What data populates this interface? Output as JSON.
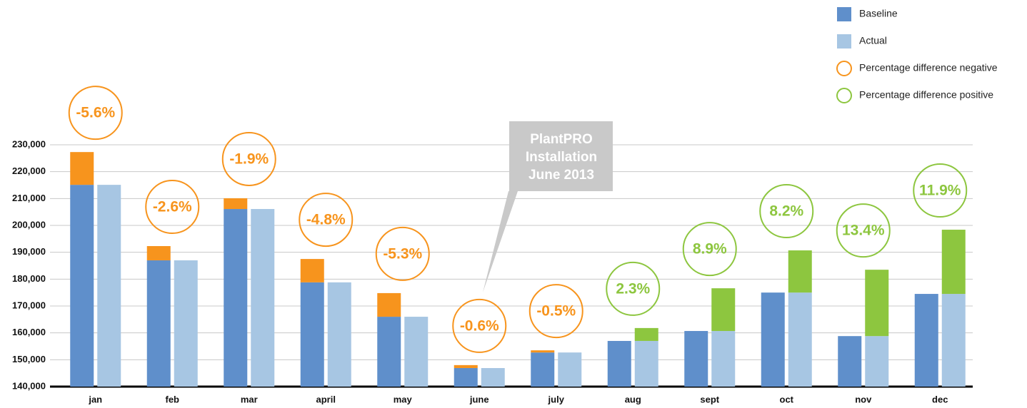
{
  "chart_data": {
    "type": "bar",
    "categories": [
      "jan",
      "feb",
      "mar",
      "april",
      "may",
      "june",
      "july",
      "aug",
      "sept",
      "oct",
      "nov",
      "dec"
    ],
    "series": [
      {
        "name": "Baseline",
        "color": "#5f8fcb",
        "values": [
          215100,
          187000,
          206100,
          178800,
          166000,
          146900,
          152700,
          161800,
          176600,
          190700,
          183500,
          198400
        ]
      },
      {
        "name": "Actual",
        "color": "#a7c6e3",
        "values": [
          227300,
          192300,
          210100,
          187500,
          174800,
          148000,
          153500,
          157000,
          160700,
          175000,
          158800,
          174500
        ]
      }
    ],
    "percent_difference": {
      "values": [
        -5.6,
        -2.6,
        -1.9,
        -4.8,
        -5.3,
        -0.6,
        -0.5,
        2.3,
        8.9,
        8.2,
        13.4,
        11.9
      ],
      "value_labels": [
        "-5.6%",
        "-2.6%",
        "-1.9%",
        "-4.8%",
        "-5.3%",
        "-0.6%",
        "-0.5%",
        "2.3%",
        "8.9%",
        "8.2%",
        "13.4%",
        "11.9%"
      ]
    },
    "percent_legend": [
      {
        "name": "Percentage difference negative",
        "color": "#f7941d"
      },
      {
        "name": "Percentage difference positive",
        "color": "#8dc63f"
      }
    ],
    "annotation": [
      "PlantPRO",
      "Installation",
      "June 2013"
    ],
    "ylim": [
      140000,
      230000
    ],
    "yticks": [
      {
        "value": 140000,
        "label": "140,000"
      },
      {
        "value": 150000,
        "label": "150,000"
      },
      {
        "value": 160000,
        "label": "160,000"
      },
      {
        "value": 170000,
        "label": "170,000"
      },
      {
        "value": 180000,
        "label": "180,000"
      },
      {
        "value": 190000,
        "label": "190,000"
      },
      {
        "value": 200000,
        "label": "200,000"
      },
      {
        "value": 210000,
        "label": "210,000"
      },
      {
        "value": 220000,
        "label": "220,000"
      },
      {
        "value": 230000,
        "label": "230,000"
      }
    ],
    "grid": true
  }
}
